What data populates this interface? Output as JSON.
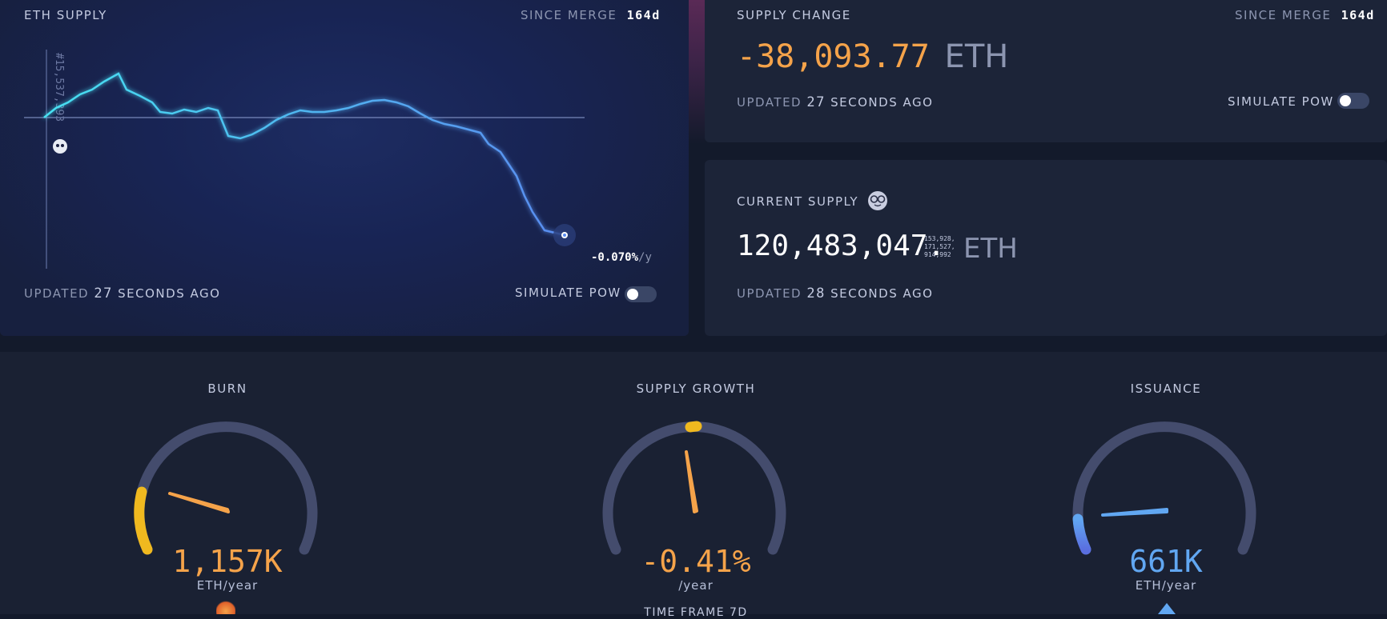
{
  "eth_supply": {
    "title": "ETH SUPPLY",
    "since_label": "SINCE MERGE",
    "since_value": "164d",
    "merge_block_label": "#15,537,393",
    "end_rate": "-0.070%",
    "end_rate_unit": "/y",
    "updated_prefix": "UPDATED",
    "updated_value": "27",
    "updated_suffix": "SECONDS AGO",
    "simulate_label": "SIMULATE PoW"
  },
  "supply_change": {
    "title": "SUPPLY CHANGE",
    "since_label": "SINCE MERGE",
    "since_value": "164d",
    "value": "-38,093.77",
    "unit": "ETH",
    "updated_prefix": "UPDATED",
    "updated_value": "27",
    "updated_suffix": "SECONDS AGO",
    "simulate_label": "SIMULATE PoW"
  },
  "current_supply": {
    "title": "CURRENT SUPPLY",
    "value_main": "120,483,047.",
    "decimals_line1": "153,928,",
    "decimals_line2": "171,527,",
    "decimals_line3": "914,992",
    "unit": "ETH",
    "updated_prefix": "UPDATED",
    "updated_value": "28",
    "updated_suffix": "SECONDS AGO"
  },
  "gauges": {
    "burn": {
      "title": "BURN",
      "value": "1,157K",
      "unit": "ETH/year"
    },
    "growth": {
      "title": "SUPPLY GROWTH",
      "value": "-0.41%",
      "unit": "/year",
      "timeframe": "TIME FRAME 7d"
    },
    "issuance": {
      "title": "ISSUANCE",
      "value": "661K",
      "unit": "ETH/year"
    }
  },
  "colors": {
    "accent_orange": "#f5a34a",
    "accent_yellow": "#f0b91f",
    "accent_blue": "#61a7f2",
    "track": "#444c6d"
  }
}
